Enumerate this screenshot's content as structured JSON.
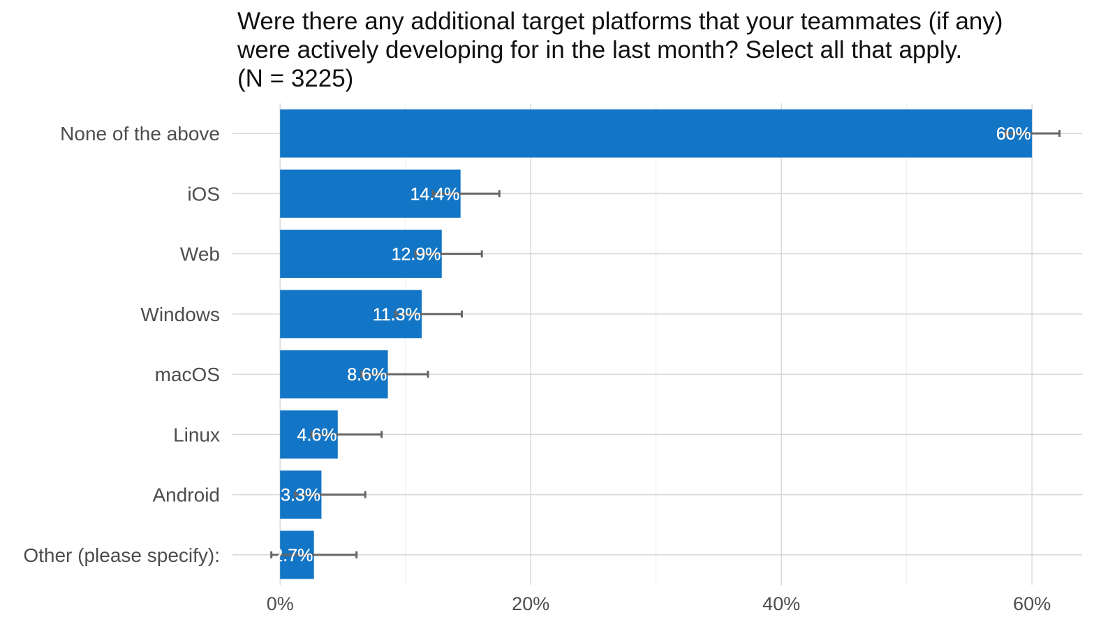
{
  "chart_data": {
    "type": "bar",
    "orientation": "horizontal",
    "title": [
      "Were there any additional target platforms that your teammates (if any)",
      "were actively developing for in the last month? Select all that apply.",
      "(N = 3225)"
    ],
    "xlabel": "",
    "ylabel": "",
    "categories": [
      "None of the above",
      "iOS",
      "Web",
      "Windows",
      "macOS",
      "Linux",
      "Android",
      "Other (please specify):"
    ],
    "values": [
      60,
      14.4,
      12.9,
      11.3,
      8.6,
      4.6,
      3.3,
      2.7
    ],
    "value_labels": [
      "60%",
      "14.4%",
      "12.9%",
      "11.3%",
      "8.6%",
      "4.6%",
      "3.3%",
      "2.7%"
    ],
    "error_low": [
      57.9,
      12.2,
      10.8,
      9.2,
      6.5,
      2.5,
      1.2,
      -0.7
    ],
    "error_high": [
      62.2,
      17.5,
      16.1,
      14.5,
      11.8,
      8.1,
      6.8,
      6.1
    ],
    "xlim": [
      -3.8,
      64
    ],
    "xticks": [
      0,
      20,
      40,
      60
    ],
    "xtick_labels": [
      "0%",
      "20%",
      "40%",
      "60%"
    ],
    "grid": true,
    "legend": "none",
    "bar_color": "#1275c5",
    "errorbar_color": "#666666"
  }
}
